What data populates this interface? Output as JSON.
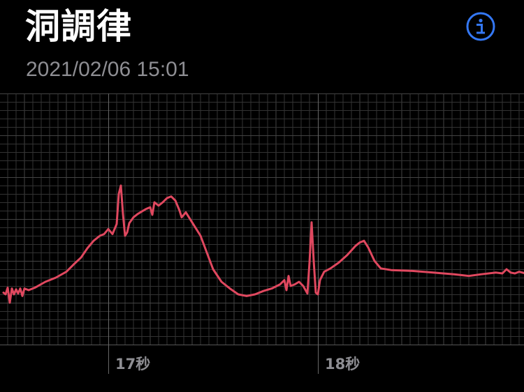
{
  "header": {
    "title": "洞調律",
    "recorded_at": "2021/02/06 15:01"
  },
  "info_button": {
    "icon": "info-circle-icon",
    "color": "#3478f6"
  },
  "colors": {
    "background": "#000000",
    "trace": "#e0485f",
    "grid_minor": "#333333",
    "grid_major": "#5a5a5a",
    "label": "#8e8e93"
  },
  "chart_data": {
    "type": "line",
    "grid": true,
    "xlabel": "",
    "ylabel": "",
    "x_unit": "秒",
    "x_ticks": [
      {
        "value": 17,
        "label": "17秒"
      },
      {
        "value": 18,
        "label": "18秒"
      }
    ],
    "xlim": [
      16.5,
      18.99
    ],
    "ylim": [
      -1.0,
      1.5
    ],
    "series": [
      {
        "values": [
          [
            16.5,
            -0.08
          ],
          [
            16.51,
            -0.1
          ],
          [
            16.52,
            -0.02
          ],
          [
            16.53,
            -0.2
          ],
          [
            16.54,
            -0.03
          ],
          [
            16.55,
            -0.1
          ],
          [
            16.56,
            -0.04
          ],
          [
            16.57,
            -0.09
          ],
          [
            16.58,
            -0.03
          ],
          [
            16.59,
            -0.12
          ],
          [
            16.6,
            -0.03
          ],
          [
            16.62,
            -0.05
          ],
          [
            16.65,
            -0.02
          ],
          [
            16.7,
            0.05
          ],
          [
            16.75,
            0.1
          ],
          [
            16.8,
            0.17
          ],
          [
            16.84,
            0.27
          ],
          [
            16.87,
            0.34
          ],
          [
            16.9,
            0.45
          ],
          [
            16.93,
            0.54
          ],
          [
            16.96,
            0.6
          ],
          [
            16.98,
            0.62
          ],
          [
            17.0,
            0.68
          ],
          [
            17.02,
            0.62
          ],
          [
            17.04,
            0.74
          ],
          [
            17.05,
            1.1
          ],
          [
            17.06,
            1.2
          ],
          [
            17.07,
            0.86
          ],
          [
            17.08,
            0.6
          ],
          [
            17.09,
            0.64
          ],
          [
            17.1,
            0.75
          ],
          [
            17.12,
            0.82
          ],
          [
            17.14,
            0.86
          ],
          [
            17.16,
            0.89
          ],
          [
            17.18,
            0.92
          ],
          [
            17.2,
            0.94
          ],
          [
            17.21,
            0.85
          ],
          [
            17.22,
            1.0
          ],
          [
            17.24,
            0.96
          ],
          [
            17.26,
            1.0
          ],
          [
            17.28,
            1.05
          ],
          [
            17.3,
            1.07
          ],
          [
            17.32,
            1.02
          ],
          [
            17.34,
            0.9
          ],
          [
            17.35,
            0.82
          ],
          [
            17.37,
            0.88
          ],
          [
            17.4,
            0.76
          ],
          [
            17.44,
            0.6
          ],
          [
            17.47,
            0.4
          ],
          [
            17.5,
            0.2
          ],
          [
            17.54,
            0.05
          ],
          [
            17.58,
            -0.03
          ],
          [
            17.62,
            -0.1
          ],
          [
            17.66,
            -0.12
          ],
          [
            17.7,
            -0.1
          ],
          [
            17.74,
            -0.06
          ],
          [
            17.78,
            -0.03
          ],
          [
            17.82,
            0.02
          ],
          [
            17.84,
            0.07
          ],
          [
            17.85,
            -0.05
          ],
          [
            17.86,
            0.12
          ],
          [
            17.87,
            0.0
          ],
          [
            17.89,
            0.02
          ],
          [
            17.91,
            0.05
          ],
          [
            17.93,
            0.0
          ],
          [
            17.95,
            -0.09
          ],
          [
            17.96,
            0.28
          ],
          [
            17.97,
            0.76
          ],
          [
            17.98,
            0.3
          ],
          [
            17.99,
            -0.08
          ],
          [
            18.0,
            -0.1
          ],
          [
            18.01,
            0.07
          ],
          [
            18.03,
            0.17
          ],
          [
            18.06,
            0.21
          ],
          [
            18.1,
            0.28
          ],
          [
            18.14,
            0.37
          ],
          [
            18.18,
            0.48
          ],
          [
            18.2,
            0.52
          ],
          [
            18.22,
            0.54
          ],
          [
            18.24,
            0.46
          ],
          [
            18.27,
            0.3
          ],
          [
            18.3,
            0.21
          ],
          [
            18.35,
            0.19
          ],
          [
            18.45,
            0.18
          ],
          [
            18.55,
            0.16
          ],
          [
            18.65,
            0.14
          ],
          [
            18.72,
            0.12
          ],
          [
            18.78,
            0.14
          ],
          [
            18.85,
            0.16
          ],
          [
            18.88,
            0.15
          ],
          [
            18.9,
            0.2
          ],
          [
            18.92,
            0.16
          ],
          [
            18.94,
            0.15
          ],
          [
            18.96,
            0.17
          ],
          [
            18.99,
            0.15
          ]
        ]
      }
    ]
  }
}
